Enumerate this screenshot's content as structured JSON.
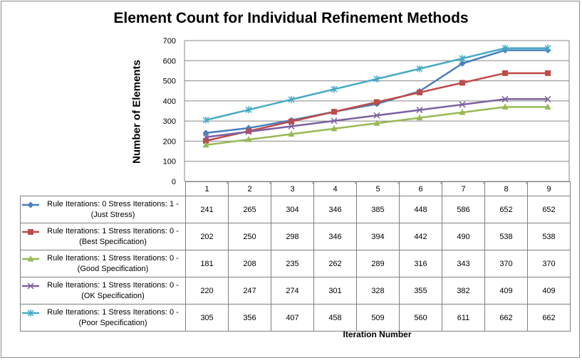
{
  "chart_data": {
    "type": "line",
    "title": "Element Count for Individual Refinement Methods",
    "xlabel": "Iteration Number",
    "ylabel": "Number of Elements",
    "ylim": [
      0,
      700
    ],
    "yticks": [
      "0",
      "100",
      "200",
      "300",
      "400",
      "500",
      "600",
      "700"
    ],
    "grid": true,
    "legend_position": "data-table",
    "categories": [
      "1",
      "2",
      "3",
      "4",
      "5",
      "6",
      "7",
      "8",
      "9"
    ],
    "series": [
      {
        "name": "Rule Iterations: 0 Stress Iterations: 1 - (Just Stress)",
        "color": "#4a7ebb",
        "marker": "diamond",
        "values": [
          241,
          265,
          304,
          346,
          385,
          448,
          586,
          652,
          652
        ]
      },
      {
        "name": "Rule Iterations: 1  Stress Iterations: 0 - (Best Specification)",
        "color": "#be4b48",
        "marker": "square",
        "values": [
          202,
          250,
          298,
          346,
          394,
          442,
          490,
          538,
          538
        ]
      },
      {
        "name": "Rule Iterations: 1 Stress Iterations: 0 - (Good Specification)",
        "color": "#98b954",
        "marker": "triangle",
        "values": [
          181,
          208,
          235,
          262,
          289,
          316,
          343,
          370,
          370
        ]
      },
      {
        "name": "Rule Iterations: 1  Stress Iterations: 0 - (OK Specification)",
        "color": "#7d60a0",
        "marker": "x",
        "values": [
          220,
          247,
          274,
          301,
          328,
          355,
          382,
          409,
          409
        ]
      },
      {
        "name": "Rule Iterations: 1  Stress Iterations: 0 - (Poor Specification)",
        "color": "#46aac5",
        "marker": "star",
        "values": [
          305,
          356,
          407,
          458,
          509,
          560,
          611,
          662,
          662
        ]
      }
    ]
  }
}
